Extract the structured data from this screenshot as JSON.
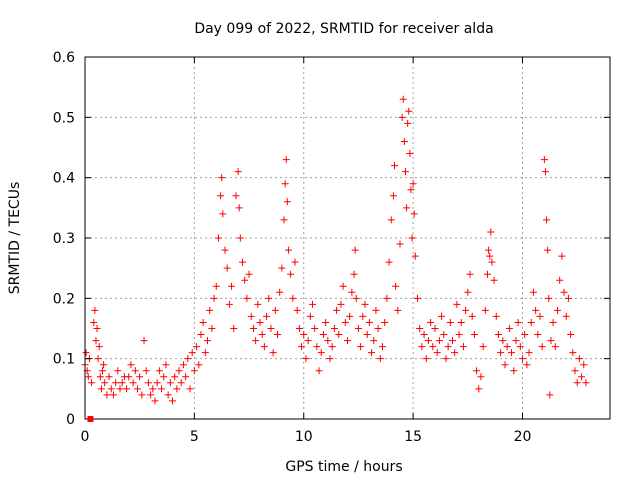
{
  "chart_data": {
    "type": "scatter",
    "title": "Day 099 of 2022, SRMTID for receiver alda",
    "xlabel": "GPS time / hours",
    "ylabel": "SRMTID / TECUs",
    "xlim": [
      0,
      24
    ],
    "ylim": [
      0,
      0.6
    ],
    "x_ticks": [
      0,
      5,
      10,
      15,
      20
    ],
    "y_ticks": [
      0,
      0.1,
      0.2,
      0.3,
      0.4,
      0.5,
      0.6
    ],
    "x_tick_labels": [
      "0",
      "5",
      "10",
      "15",
      "20"
    ],
    "y_tick_labels": [
      "0",
      "0.1",
      "0.2",
      "0.3",
      "0.4",
      "0.5",
      "0.6"
    ],
    "grid": true,
    "marker": "plus",
    "colors": {
      "points": "#ff0000",
      "grid": "#a0a0a0",
      "axes": "#000000"
    },
    "zero_point": {
      "x": 0.25,
      "y": 0
    },
    "series": [
      {
        "name": "SRMTID",
        "points": [
          [
            0.0,
            0.09
          ],
          [
            0.05,
            0.11
          ],
          [
            0.1,
            0.08
          ],
          [
            0.15,
            0.07
          ],
          [
            0.2,
            0.1
          ],
          [
            0.3,
            0.06
          ],
          [
            0.4,
            0.16
          ],
          [
            0.45,
            0.18
          ],
          [
            0.5,
            0.13
          ],
          [
            0.55,
            0.15
          ],
          [
            0.6,
            0.1
          ],
          [
            0.65,
            0.12
          ],
          [
            0.7,
            0.07
          ],
          [
            0.75,
            0.05
          ],
          [
            0.8,
            0.08
          ],
          [
            0.85,
            0.09
          ],
          [
            0.9,
            0.06
          ],
          [
            1.0,
            0.04
          ],
          [
            1.1,
            0.07
          ],
          [
            1.2,
            0.05
          ],
          [
            1.3,
            0.04
          ],
          [
            1.4,
            0.06
          ],
          [
            1.5,
            0.08
          ],
          [
            1.6,
            0.05
          ],
          [
            1.7,
            0.06
          ],
          [
            1.8,
            0.07
          ],
          [
            1.9,
            0.05
          ],
          [
            2.0,
            0.07
          ],
          [
            2.1,
            0.09
          ],
          [
            2.2,
            0.06
          ],
          [
            2.3,
            0.08
          ],
          [
            2.4,
            0.05
          ],
          [
            2.5,
            0.07
          ],
          [
            2.6,
            0.04
          ],
          [
            2.7,
            0.13
          ],
          [
            2.8,
            0.08
          ],
          [
            2.9,
            0.06
          ],
          [
            3.0,
            0.04
          ],
          [
            3.1,
            0.05
          ],
          [
            3.2,
            0.03
          ],
          [
            3.3,
            0.06
          ],
          [
            3.4,
            0.08
          ],
          [
            3.5,
            0.05
          ],
          [
            3.6,
            0.07
          ],
          [
            3.7,
            0.09
          ],
          [
            3.8,
            0.04
          ],
          [
            3.9,
            0.06
          ],
          [
            4.0,
            0.03
          ],
          [
            4.1,
            0.07
          ],
          [
            4.2,
            0.05
          ],
          [
            4.3,
            0.08
          ],
          [
            4.4,
            0.06
          ],
          [
            4.5,
            0.09
          ],
          [
            4.6,
            0.07
          ],
          [
            4.7,
            0.1
          ],
          [
            4.8,
            0.05
          ],
          [
            4.9,
            0.11
          ],
          [
            5.0,
            0.08
          ],
          [
            5.1,
            0.12
          ],
          [
            5.2,
            0.09
          ],
          [
            5.3,
            0.14
          ],
          [
            5.4,
            0.16
          ],
          [
            5.5,
            0.11
          ],
          [
            5.6,
            0.13
          ],
          [
            5.7,
            0.18
          ],
          [
            5.8,
            0.15
          ],
          [
            5.9,
            0.2
          ],
          [
            6.0,
            0.22
          ],
          [
            6.1,
            0.3
          ],
          [
            6.2,
            0.37
          ],
          [
            6.25,
            0.4
          ],
          [
            6.3,
            0.34
          ],
          [
            6.4,
            0.28
          ],
          [
            6.5,
            0.25
          ],
          [
            6.6,
            0.19
          ],
          [
            6.7,
            0.22
          ],
          [
            6.8,
            0.15
          ],
          [
            6.9,
            0.37
          ],
          [
            7.0,
            0.41
          ],
          [
            7.05,
            0.35
          ],
          [
            7.1,
            0.3
          ],
          [
            7.2,
            0.26
          ],
          [
            7.3,
            0.23
          ],
          [
            7.4,
            0.2
          ],
          [
            7.5,
            0.24
          ],
          [
            7.6,
            0.17
          ],
          [
            7.7,
            0.15
          ],
          [
            7.8,
            0.13
          ],
          [
            7.9,
            0.19
          ],
          [
            8.0,
            0.16
          ],
          [
            8.1,
            0.14
          ],
          [
            8.2,
            0.12
          ],
          [
            8.3,
            0.17
          ],
          [
            8.4,
            0.2
          ],
          [
            8.5,
            0.15
          ],
          [
            8.6,
            0.11
          ],
          [
            8.7,
            0.18
          ],
          [
            8.8,
            0.14
          ],
          [
            8.9,
            0.21
          ],
          [
            9.0,
            0.25
          ],
          [
            9.1,
            0.33
          ],
          [
            9.15,
            0.39
          ],
          [
            9.2,
            0.43
          ],
          [
            9.25,
            0.36
          ],
          [
            9.3,
            0.28
          ],
          [
            9.4,
            0.24
          ],
          [
            9.5,
            0.2
          ],
          [
            9.6,
            0.26
          ],
          [
            9.7,
            0.18
          ],
          [
            9.8,
            0.15
          ],
          [
            9.9,
            0.12
          ],
          [
            10.0,
            0.14
          ],
          [
            10.1,
            0.1
          ],
          [
            10.2,
            0.13
          ],
          [
            10.3,
            0.17
          ],
          [
            10.4,
            0.19
          ],
          [
            10.5,
            0.15
          ],
          [
            10.6,
            0.12
          ],
          [
            10.7,
            0.08
          ],
          [
            10.8,
            0.11
          ],
          [
            10.9,
            0.14
          ],
          [
            11.0,
            0.16
          ],
          [
            11.1,
            0.13
          ],
          [
            11.2,
            0.1
          ],
          [
            11.3,
            0.12
          ],
          [
            11.4,
            0.15
          ],
          [
            11.5,
            0.18
          ],
          [
            11.6,
            0.14
          ],
          [
            11.7,
            0.19
          ],
          [
            11.8,
            0.22
          ],
          [
            11.9,
            0.16
          ],
          [
            12.0,
            0.13
          ],
          [
            12.1,
            0.17
          ],
          [
            12.2,
            0.21
          ],
          [
            12.3,
            0.24
          ],
          [
            12.35,
            0.28
          ],
          [
            12.4,
            0.2
          ],
          [
            12.5,
            0.15
          ],
          [
            12.6,
            0.12
          ],
          [
            12.7,
            0.17
          ],
          [
            12.8,
            0.19
          ],
          [
            12.9,
            0.14
          ],
          [
            13.0,
            0.16
          ],
          [
            13.1,
            0.11
          ],
          [
            13.2,
            0.13
          ],
          [
            13.3,
            0.18
          ],
          [
            13.4,
            0.15
          ],
          [
            13.5,
            0.1
          ],
          [
            13.6,
            0.12
          ],
          [
            13.7,
            0.16
          ],
          [
            13.8,
            0.2
          ],
          [
            13.9,
            0.26
          ],
          [
            14.0,
            0.33
          ],
          [
            14.1,
            0.37
          ],
          [
            14.15,
            0.42
          ],
          [
            14.2,
            0.22
          ],
          [
            14.3,
            0.18
          ],
          [
            14.4,
            0.29
          ],
          [
            14.5,
            0.5
          ],
          [
            14.55,
            0.53
          ],
          [
            14.6,
            0.46
          ],
          [
            14.65,
            0.41
          ],
          [
            14.7,
            0.35
          ],
          [
            14.75,
            0.49
          ],
          [
            14.8,
            0.51
          ],
          [
            14.85,
            0.44
          ],
          [
            14.9,
            0.38
          ],
          [
            14.95,
            0.3
          ],
          [
            15.0,
            0.39
          ],
          [
            15.05,
            0.34
          ],
          [
            15.1,
            0.27
          ],
          [
            15.2,
            0.2
          ],
          [
            15.3,
            0.15
          ],
          [
            15.4,
            0.12
          ],
          [
            15.5,
            0.14
          ],
          [
            15.6,
            0.1
          ],
          [
            15.7,
            0.13
          ],
          [
            15.8,
            0.16
          ],
          [
            15.9,
            0.12
          ],
          [
            16.0,
            0.15
          ],
          [
            16.1,
            0.11
          ],
          [
            16.2,
            0.13
          ],
          [
            16.3,
            0.17
          ],
          [
            16.4,
            0.14
          ],
          [
            16.5,
            0.1
          ],
          [
            16.6,
            0.12
          ],
          [
            16.7,
            0.16
          ],
          [
            16.8,
            0.13
          ],
          [
            16.9,
            0.11
          ],
          [
            17.0,
            0.19
          ],
          [
            17.1,
            0.14
          ],
          [
            17.2,
            0.16
          ],
          [
            17.3,
            0.12
          ],
          [
            17.4,
            0.18
          ],
          [
            17.5,
            0.21
          ],
          [
            17.6,
            0.24
          ],
          [
            17.7,
            0.17
          ],
          [
            17.8,
            0.14
          ],
          [
            17.9,
            0.08
          ],
          [
            18.0,
            0.05
          ],
          [
            18.1,
            0.07
          ],
          [
            18.2,
            0.12
          ],
          [
            18.3,
            0.18
          ],
          [
            18.4,
            0.24
          ],
          [
            18.45,
            0.28
          ],
          [
            18.5,
            0.27
          ],
          [
            18.55,
            0.31
          ],
          [
            18.6,
            0.26
          ],
          [
            18.7,
            0.23
          ],
          [
            18.8,
            0.17
          ],
          [
            18.9,
            0.14
          ],
          [
            19.0,
            0.11
          ],
          [
            19.1,
            0.13
          ],
          [
            19.2,
            0.09
          ],
          [
            19.3,
            0.12
          ],
          [
            19.4,
            0.15
          ],
          [
            19.5,
            0.11
          ],
          [
            19.6,
            0.08
          ],
          [
            19.7,
            0.13
          ],
          [
            19.8,
            0.16
          ],
          [
            19.9,
            0.12
          ],
          [
            20.0,
            0.1
          ],
          [
            20.1,
            0.14
          ],
          [
            20.2,
            0.09
          ],
          [
            20.3,
            0.11
          ],
          [
            20.4,
            0.16
          ],
          [
            20.5,
            0.21
          ],
          [
            20.6,
            0.18
          ],
          [
            20.7,
            0.14
          ],
          [
            20.8,
            0.17
          ],
          [
            20.9,
            0.12
          ],
          [
            21.0,
            0.43
          ],
          [
            21.05,
            0.41
          ],
          [
            21.1,
            0.33
          ],
          [
            21.15,
            0.28
          ],
          [
            21.2,
            0.2
          ],
          [
            21.25,
            0.04
          ],
          [
            21.3,
            0.13
          ],
          [
            21.4,
            0.16
          ],
          [
            21.5,
            0.12
          ],
          [
            21.6,
            0.18
          ],
          [
            21.7,
            0.23
          ],
          [
            21.8,
            0.27
          ],
          [
            21.9,
            0.21
          ],
          [
            22.0,
            0.17
          ],
          [
            22.1,
            0.2
          ],
          [
            22.2,
            0.14
          ],
          [
            22.3,
            0.11
          ],
          [
            22.4,
            0.08
          ],
          [
            22.5,
            0.06
          ],
          [
            22.6,
            0.1
          ],
          [
            22.7,
            0.07
          ],
          [
            22.8,
            0.09
          ],
          [
            22.9,
            0.06
          ]
        ]
      }
    ]
  }
}
